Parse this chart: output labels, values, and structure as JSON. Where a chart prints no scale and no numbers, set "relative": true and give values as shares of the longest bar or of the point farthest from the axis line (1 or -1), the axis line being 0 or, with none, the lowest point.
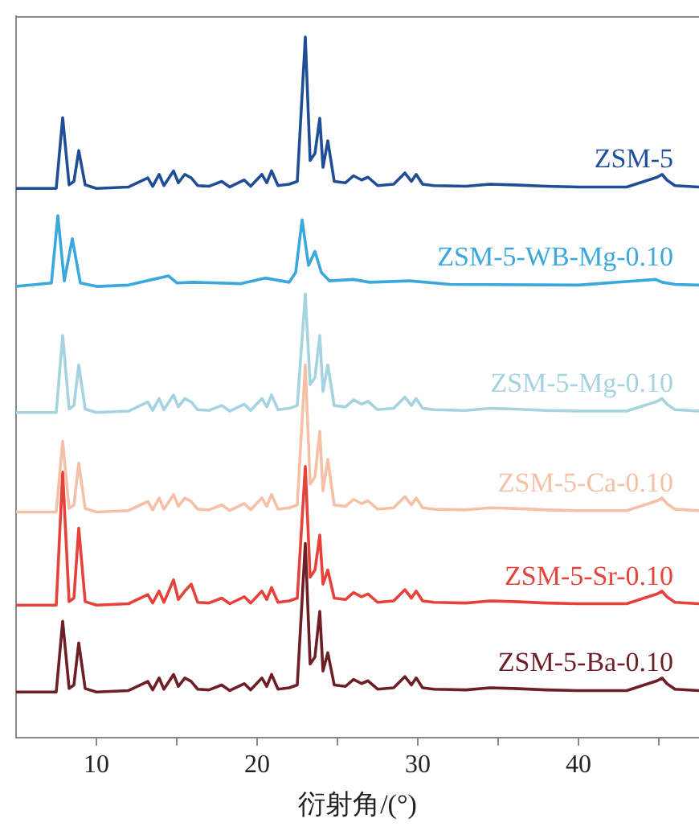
{
  "chart_data": {
    "type": "line",
    "relative": true,
    "xlabel": "衍射角/(°)",
    "xlim": [
      5,
      47.5
    ],
    "xticks": [
      10,
      {
        "value": 15,
        "label": null
      },
      20,
      {
        "value": 25,
        "label": null
      },
      30,
      {
        "value": 35,
        "label": null
      },
      40,
      {
        "value": 45,
        "label": null
      }
    ],
    "x": [
      5,
      7.5,
      7.9,
      8.3,
      8.6,
      8.9,
      9.3,
      10,
      12,
      13.2,
      13.5,
      13.9,
      14.2,
      14.8,
      15.1,
      15.5,
      15.9,
      16.3,
      17,
      17.8,
      18.3,
      19.2,
      19.6,
      20.3,
      20.6,
      20.9,
      21.3,
      22,
      22.5,
      23.0,
      23.3,
      23.6,
      23.9,
      24.1,
      24.4,
      24.8,
      25.5,
      26,
      26.5,
      26.9,
      27.5,
      28.5,
      29.2,
      29.6,
      29.9,
      30.3,
      31,
      33,
      34.5,
      36,
      38,
      40,
      43,
      44.9,
      45.2,
      45.5,
      46,
      47.5
    ],
    "tick_labels": "x",
    "grid": false,
    "legend": false,
    "marker": "none",
    "line_style": "solid",
    "series": [
      {
        "name": "ZSM-5",
        "color": "#1f4e96",
        "values": [
          0.784,
          0.784,
          0.885,
          0.789,
          0.794,
          0.838,
          0.789,
          0.784,
          0.786,
          0.799,
          0.787,
          0.804,
          0.788,
          0.809,
          0.792,
          0.804,
          0.799,
          0.788,
          0.787,
          0.794,
          0.786,
          0.796,
          0.787,
          0.804,
          0.792,
          0.809,
          0.788,
          0.79,
          0.794,
          1.0,
          0.824,
          0.834,
          0.884,
          0.814,
          0.852,
          0.794,
          0.792,
          0.802,
          0.796,
          0.8,
          0.788,
          0.79,
          0.806,
          0.794,
          0.804,
          0.79,
          0.788,
          0.787,
          0.79,
          0.789,
          0.787,
          0.786,
          0.786,
          0.8,
          0.804,
          0.796,
          0.788,
          0.786
        ]
      },
      {
        "name": "ZSM-5-WB-Mg-0.10",
        "color": "#3aa8dc",
        "x": [
          5,
          7.2,
          7.6,
          8.0,
          8.5,
          9.0,
          10,
          12,
          13.5,
          14.5,
          15.0,
          16,
          19,
          20.5,
          22,
          22.4,
          22.8,
          23.2,
          23.6,
          24.0,
          24.5,
          26,
          27,
          29.5,
          32,
          40,
          44.8,
          45.2,
          46,
          47.5
        ],
        "values": [
          0.644,
          0.649,
          0.745,
          0.652,
          0.712,
          0.649,
          0.644,
          0.646,
          0.654,
          0.659,
          0.649,
          0.65,
          0.648,
          0.656,
          0.65,
          0.664,
          0.739,
          0.674,
          0.694,
          0.664,
          0.652,
          0.654,
          0.65,
          0.652,
          0.647,
          0.646,
          0.654,
          0.65,
          0.647,
          0.646
        ]
      },
      {
        "name": "ZSM-5-Mg-0.10",
        "color": "#a6d3e0",
        "values": [
          0.464,
          0.464,
          0.574,
          0.469,
          0.474,
          0.532,
          0.469,
          0.464,
          0.466,
          0.479,
          0.467,
          0.484,
          0.468,
          0.489,
          0.472,
          0.484,
          0.479,
          0.468,
          0.467,
          0.474,
          0.466,
          0.476,
          0.467,
          0.484,
          0.472,
          0.489,
          0.468,
          0.47,
          0.474,
          0.633,
          0.504,
          0.514,
          0.574,
          0.494,
          0.532,
          0.474,
          0.472,
          0.482,
          0.476,
          0.48,
          0.468,
          0.47,
          0.486,
          0.474,
          0.484,
          0.47,
          0.468,
          0.467,
          0.47,
          0.469,
          0.467,
          0.466,
          0.466,
          0.48,
          0.484,
          0.476,
          0.468,
          0.466
        ]
      },
      {
        "name": "ZSM-5-Ca-0.10",
        "color": "#f5c0a6",
        "values": [
          0.322,
          0.322,
          0.423,
          0.327,
          0.332,
          0.392,
          0.327,
          0.322,
          0.324,
          0.337,
          0.325,
          0.342,
          0.326,
          0.347,
          0.33,
          0.342,
          0.337,
          0.326,
          0.325,
          0.332,
          0.324,
          0.334,
          0.325,
          0.342,
          0.33,
          0.347,
          0.326,
          0.328,
          0.332,
          0.532,
          0.362,
          0.372,
          0.437,
          0.352,
          0.397,
          0.332,
          0.33,
          0.34,
          0.334,
          0.338,
          0.326,
          0.328,
          0.344,
          0.332,
          0.342,
          0.328,
          0.326,
          0.325,
          0.328,
          0.327,
          0.325,
          0.324,
          0.324,
          0.338,
          0.342,
          0.334,
          0.326,
          0.324
        ]
      },
      {
        "name": "ZSM-5-Sr-0.10",
        "color": "#e8413a",
        "values": [
          0.189,
          0.189,
          0.379,
          0.194,
          0.199,
          0.299,
          0.194,
          0.189,
          0.191,
          0.204,
          0.192,
          0.209,
          0.193,
          0.225,
          0.197,
          0.209,
          0.219,
          0.193,
          0.192,
          0.199,
          0.191,
          0.201,
          0.192,
          0.209,
          0.197,
          0.214,
          0.193,
          0.195,
          0.199,
          0.387,
          0.229,
          0.239,
          0.289,
          0.219,
          0.239,
          0.199,
          0.197,
          0.207,
          0.201,
          0.205,
          0.193,
          0.195,
          0.211,
          0.199,
          0.209,
          0.195,
          0.193,
          0.192,
          0.195,
          0.194,
          0.192,
          0.191,
          0.191,
          0.205,
          0.209,
          0.201,
          0.193,
          0.191
        ]
      },
      {
        "name": "ZSM-5-Ba-0.10",
        "color": "#6e1e25",
        "values": [
          0.065,
          0.065,
          0.166,
          0.07,
          0.075,
          0.135,
          0.07,
          0.065,
          0.067,
          0.08,
          0.068,
          0.085,
          0.069,
          0.09,
          0.073,
          0.085,
          0.08,
          0.069,
          0.068,
          0.075,
          0.067,
          0.077,
          0.068,
          0.085,
          0.073,
          0.09,
          0.069,
          0.071,
          0.075,
          0.277,
          0.105,
          0.115,
          0.18,
          0.095,
          0.121,
          0.075,
          0.073,
          0.083,
          0.077,
          0.081,
          0.069,
          0.071,
          0.087,
          0.075,
          0.085,
          0.071,
          0.069,
          0.068,
          0.071,
          0.07,
          0.068,
          0.067,
          0.067,
          0.081,
          0.085,
          0.077,
          0.069,
          0.067
        ]
      }
    ]
  }
}
